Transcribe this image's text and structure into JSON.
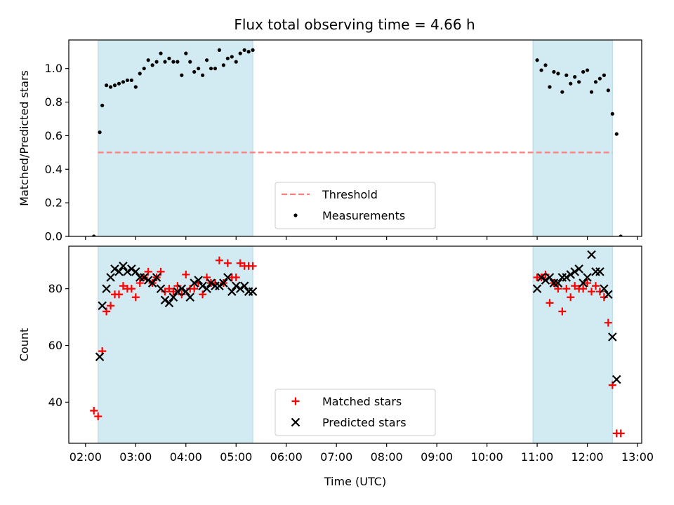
{
  "title": "Flux total observing time = 4.66 h",
  "colors": {
    "shade": "#add8e6",
    "threshold": "#ff7f7f",
    "measurement": "#000000",
    "matched": "#ff0000",
    "predicted": "#000000"
  },
  "chart_data": [
    {
      "type": "scatter",
      "ylabel": "Matched/Predicted stars",
      "ylim": [
        0,
        1.17
      ],
      "yticks": [
        "0.0",
        "0.2",
        "0.4",
        "0.6",
        "0.8",
        "1.0"
      ],
      "xlim": [
        "01:40",
        "13:05"
      ],
      "shaded_intervals": [
        [
          "02:15",
          "05:20"
        ],
        [
          "10:55",
          "12:30"
        ]
      ],
      "threshold": {
        "label": "Threshold",
        "value": 0.5,
        "x_from": "02:15",
        "x_to": "12:30"
      },
      "legend": {
        "position": "lower-center",
        "entries": [
          "Threshold",
          "Measurements"
        ]
      },
      "series": [
        {
          "name": "Measurements",
          "marker": "dot",
          "points": [
            [
              "02:10",
              0.0
            ],
            [
              "02:17",
              0.62
            ],
            [
              "02:20",
              0.78
            ],
            [
              "02:25",
              0.9
            ],
            [
              "02:30",
              0.89
            ],
            [
              "02:35",
              0.9
            ],
            [
              "02:40",
              0.91
            ],
            [
              "02:45",
              0.92
            ],
            [
              "02:50",
              0.93
            ],
            [
              "02:55",
              0.93
            ],
            [
              "03:00",
              0.89
            ],
            [
              "03:05",
              0.97
            ],
            [
              "03:10",
              1.0
            ],
            [
              "03:15",
              1.05
            ],
            [
              "03:20",
              1.02
            ],
            [
              "03:25",
              1.04
            ],
            [
              "03:30",
              1.09
            ],
            [
              "03:35",
              1.04
            ],
            [
              "03:40",
              1.06
            ],
            [
              "03:45",
              1.04
            ],
            [
              "03:50",
              1.04
            ],
            [
              "03:55",
              0.96
            ],
            [
              "04:00",
              1.09
            ],
            [
              "04:05",
              1.04
            ],
            [
              "04:10",
              0.98
            ],
            [
              "04:15",
              1.0
            ],
            [
              "04:20",
              0.96
            ],
            [
              "04:25",
              1.05
            ],
            [
              "04:30",
              1.0
            ],
            [
              "04:35",
              1.0
            ],
            [
              "04:40",
              1.11
            ],
            [
              "04:45",
              1.02
            ],
            [
              "04:50",
              1.06
            ],
            [
              "04:55",
              1.07
            ],
            [
              "05:00",
              1.04
            ],
            [
              "05:05",
              1.09
            ],
            [
              "05:10",
              1.11
            ],
            [
              "05:15",
              1.1
            ],
            [
              "05:20",
              1.11
            ],
            [
              "11:00",
              1.05
            ],
            [
              "11:05",
              0.99
            ],
            [
              "11:10",
              1.02
            ],
            [
              "11:15",
              0.89
            ],
            [
              "11:20",
              0.98
            ],
            [
              "11:25",
              0.97
            ],
            [
              "11:30",
              0.86
            ],
            [
              "11:35",
              0.96
            ],
            [
              "11:40",
              0.91
            ],
            [
              "11:45",
              0.95
            ],
            [
              "11:50",
              0.92
            ],
            [
              "11:55",
              0.98
            ],
            [
              "12:00",
              0.99
            ],
            [
              "12:05",
              0.86
            ],
            [
              "12:10",
              0.92
            ],
            [
              "12:15",
              0.94
            ],
            [
              "12:20",
              0.96
            ],
            [
              "12:25",
              0.87
            ],
            [
              "12:30",
              0.73
            ],
            [
              "12:35",
              0.61
            ],
            [
              "12:40",
              0.0
            ]
          ]
        }
      ]
    },
    {
      "type": "scatter",
      "xlabel": "Time (UTC)",
      "ylabel": "Count",
      "ylim": [
        25.5,
        95
      ],
      "yticks": [
        "40",
        "60",
        "80"
      ],
      "xlim": [
        "01:40",
        "13:05"
      ],
      "xticks": [
        "02:00",
        "03:00",
        "04:00",
        "05:00",
        "06:00",
        "07:00",
        "08:00",
        "09:00",
        "10:00",
        "11:00",
        "12:00",
        "13:00"
      ],
      "shaded_intervals": [
        [
          "02:15",
          "05:20"
        ],
        [
          "10:55",
          "12:30"
        ]
      ],
      "legend": {
        "position": "lower-center",
        "entries": [
          "Matched stars",
          "Predicted stars"
        ]
      },
      "series": [
        {
          "name": "Matched stars",
          "marker": "plus",
          "points": [
            [
              "02:10",
              37
            ],
            [
              "02:15",
              35
            ],
            [
              "02:20",
              58
            ],
            [
              "02:25",
              72
            ],
            [
              "02:30",
              74
            ],
            [
              "02:35",
              78
            ],
            [
              "02:40",
              78
            ],
            [
              "02:45",
              81
            ],
            [
              "02:50",
              80
            ],
            [
              "02:55",
              80
            ],
            [
              "03:00",
              77
            ],
            [
              "03:05",
              82
            ],
            [
              "03:10",
              84
            ],
            [
              "03:15",
              86
            ],
            [
              "03:20",
              82
            ],
            [
              "03:25",
              84
            ],
            [
              "03:30",
              86
            ],
            [
              "03:35",
              79
            ],
            [
              "03:40",
              80
            ],
            [
              "03:45",
              79
            ],
            [
              "03:50",
              81
            ],
            [
              "03:55",
              78
            ],
            [
              "04:00",
              85
            ],
            [
              "04:05",
              80
            ],
            [
              "04:10",
              80
            ],
            [
              "04:15",
              82
            ],
            [
              "04:20",
              78
            ],
            [
              "04:25",
              84
            ],
            [
              "04:30",
              82
            ],
            [
              "04:35",
              82
            ],
            [
              "04:40",
              90
            ],
            [
              "04:45",
              82
            ],
            [
              "04:50",
              89
            ],
            [
              "04:55",
              84
            ],
            [
              "05:00",
              84
            ],
            [
              "05:05",
              89
            ],
            [
              "05:10",
              88
            ],
            [
              "05:15",
              88
            ],
            [
              "05:20",
              88
            ],
            [
              "11:00",
              84
            ],
            [
              "11:05",
              84
            ],
            [
              "11:10",
              85
            ],
            [
              "11:15",
              75
            ],
            [
              "11:20",
              82
            ],
            [
              "11:25",
              80
            ],
            [
              "11:30",
              72
            ],
            [
              "11:35",
              80
            ],
            [
              "11:40",
              77
            ],
            [
              "11:45",
              81
            ],
            [
              "11:50",
              80
            ],
            [
              "11:55",
              80
            ],
            [
              "12:00",
              82
            ],
            [
              "12:05",
              79
            ],
            [
              "12:10",
              81
            ],
            [
              "12:15",
              79
            ],
            [
              "12:20",
              77
            ],
            [
              "12:25",
              68
            ],
            [
              "12:30",
              46
            ],
            [
              "12:35",
              29
            ],
            [
              "12:40",
              29
            ]
          ]
        },
        {
          "name": "Predicted stars",
          "marker": "x",
          "points": [
            [
              "02:17",
              56
            ],
            [
              "02:20",
              74
            ],
            [
              "02:25",
              80
            ],
            [
              "02:30",
              84
            ],
            [
              "02:35",
              87
            ],
            [
              "02:40",
              86
            ],
            [
              "02:45",
              88
            ],
            [
              "02:50",
              86
            ],
            [
              "02:55",
              87
            ],
            [
              "03:00",
              86
            ],
            [
              "03:05",
              84
            ],
            [
              "03:10",
              84
            ],
            [
              "03:15",
              83
            ],
            [
              "03:20",
              82
            ],
            [
              "03:25",
              84
            ],
            [
              "03:30",
              80
            ],
            [
              "03:35",
              76
            ],
            [
              "03:40",
              75
            ],
            [
              "03:45",
              77
            ],
            [
              "03:50",
              79
            ],
            [
              "03:55",
              80
            ],
            [
              "04:00",
              79
            ],
            [
              "04:05",
              77
            ],
            [
              "04:10",
              82
            ],
            [
              "04:15",
              83
            ],
            [
              "04:20",
              81
            ],
            [
              "04:25",
              80
            ],
            [
              "04:30",
              82
            ],
            [
              "04:35",
              81
            ],
            [
              "04:40",
              81
            ],
            [
              "04:45",
              82
            ],
            [
              "04:50",
              84
            ],
            [
              "04:55",
              79
            ],
            [
              "05:00",
              81
            ],
            [
              "05:05",
              80
            ],
            [
              "05:10",
              81
            ],
            [
              "05:15",
              79
            ],
            [
              "05:20",
              79
            ],
            [
              "11:00",
              80
            ],
            [
              "11:05",
              84
            ],
            [
              "11:10",
              83
            ],
            [
              "11:15",
              84
            ],
            [
              "11:20",
              82
            ],
            [
              "11:25",
              82
            ],
            [
              "11:30",
              84
            ],
            [
              "11:35",
              84
            ],
            [
              "11:40",
              85
            ],
            [
              "11:45",
              86
            ],
            [
              "11:50",
              87
            ],
            [
              "11:55",
              82
            ],
            [
              "12:00",
              84
            ],
            [
              "12:05",
              92
            ],
            [
              "12:10",
              86
            ],
            [
              "12:15",
              86
            ],
            [
              "12:20",
              80
            ],
            [
              "12:25",
              78
            ],
            [
              "12:30",
              63
            ],
            [
              "12:35",
              48
            ]
          ]
        }
      ]
    }
  ]
}
